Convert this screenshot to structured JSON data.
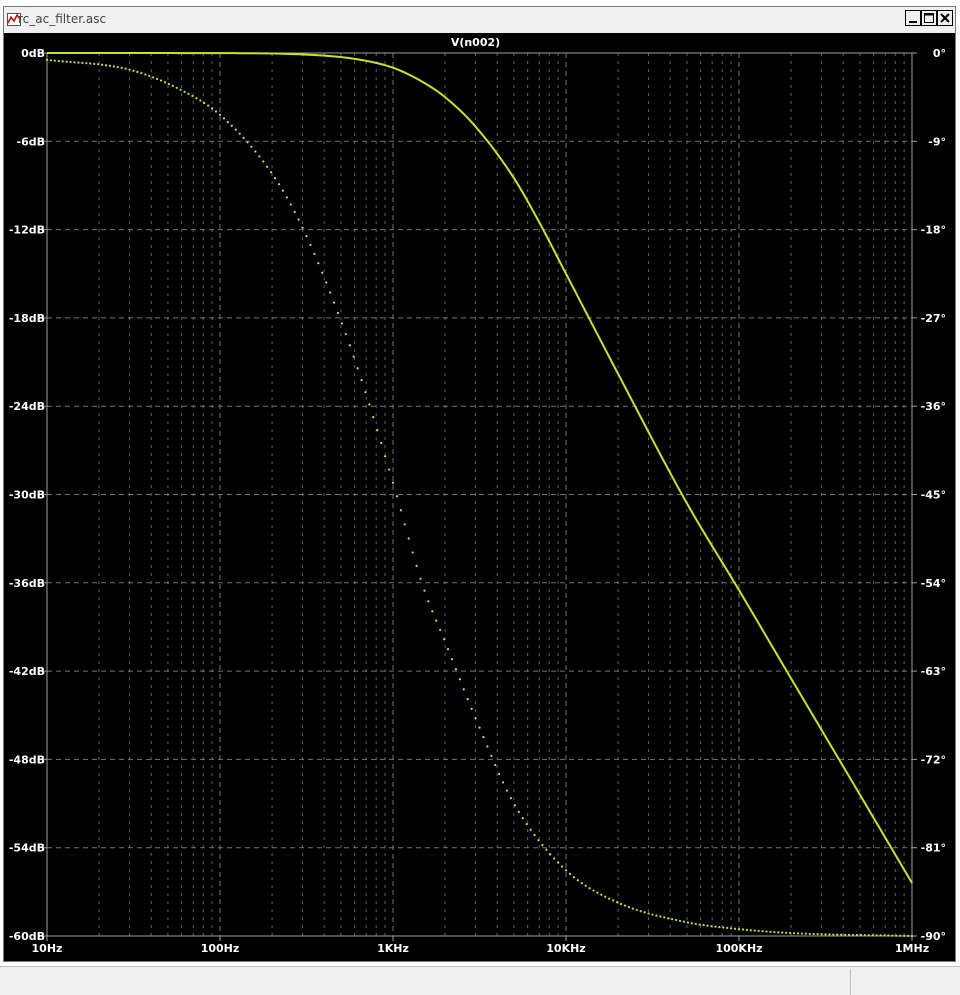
{
  "window": {
    "title": "rc_ac_filter.asc",
    "controls": [
      "minimize",
      "maximize",
      "close"
    ]
  },
  "colors": {
    "background": "#000000",
    "trace": "#c8e61e",
    "grid": "#808080",
    "text": "#ffffff"
  },
  "chart_data": {
    "type": "line",
    "title": "V(n002)",
    "x_scale": "log",
    "xlim": [
      10,
      1000000
    ],
    "x_ticks": [
      {
        "value": 10,
        "label": "10Hz"
      },
      {
        "value": 100,
        "label": "100Hz"
      },
      {
        "value": 1000,
        "label": "1KHz"
      },
      {
        "value": 10000,
        "label": "10KHz"
      },
      {
        "value": 100000,
        "label": "100KHz"
      },
      {
        "value": 1000000,
        "label": "1MHz"
      }
    ],
    "y_left": {
      "unit": "dB",
      "lim": [
        -60,
        0
      ],
      "ticks": [
        {
          "value": 0,
          "label": "0dB"
        },
        {
          "value": -6,
          "label": "-6dB"
        },
        {
          "value": -12,
          "label": "-12dB"
        },
        {
          "value": -18,
          "label": "-18dB"
        },
        {
          "value": -24,
          "label": "-24dB"
        },
        {
          "value": -30,
          "label": "-30dB"
        },
        {
          "value": -36,
          "label": "-36dB"
        },
        {
          "value": -42,
          "label": "-42dB"
        },
        {
          "value": -48,
          "label": "-48dB"
        },
        {
          "value": -54,
          "label": "-54dB"
        },
        {
          "value": -60,
          "label": "-60dB"
        }
      ]
    },
    "y_right": {
      "unit": "degrees",
      "lim": [
        -90,
        0
      ],
      "ticks": [
        {
          "value": 0,
          "label": "0°"
        },
        {
          "value": -9,
          "label": "-9°"
        },
        {
          "value": -18,
          "label": "-18°"
        },
        {
          "value": -27,
          "label": "-27°"
        },
        {
          "value": -36,
          "label": "-36°"
        },
        {
          "value": -45,
          "label": "-45°"
        },
        {
          "value": -54,
          "label": "-54°"
        },
        {
          "value": -63,
          "label": "-63°"
        },
        {
          "value": -72,
          "label": "-72°"
        },
        {
          "value": -81,
          "label": "-81°"
        },
        {
          "value": -90,
          "label": "-90°"
        }
      ]
    },
    "grid": true,
    "series": [
      {
        "axis": "left",
        "style": "solid",
        "x": [
          10,
          100,
          300,
          600,
          1000,
          1500,
          2000,
          3000,
          5000,
          7000,
          10000,
          20000,
          50000,
          100000,
          200000,
          500000,
          1000000
        ],
        "values": [
          0,
          -0.01,
          -0.1,
          -0.4,
          -1.0,
          -2.0,
          -3.0,
          -5.0,
          -8.5,
          -11.5,
          -15.0,
          -21.8,
          -30.6,
          -36.5,
          -42.5,
          -50.4,
          -56.4
        ]
      },
      {
        "axis": "right",
        "style": "dotted",
        "x": [
          10,
          30,
          60,
          100,
          200,
          300,
          500,
          700,
          1000,
          1500,
          2000,
          3000,
          5000,
          10000,
          20000,
          50000,
          100000,
          200000,
          1000000
        ],
        "values": [
          -0.7,
          -1.7,
          -3.8,
          -6.3,
          -12.3,
          -17.8,
          -27.3,
          -34.8,
          -43.8,
          -54.5,
          -60.0,
          -67.8,
          -76.5,
          -83.3,
          -86.6,
          -88.6,
          -89.3,
          -89.7,
          -90.0
        ]
      }
    ]
  }
}
